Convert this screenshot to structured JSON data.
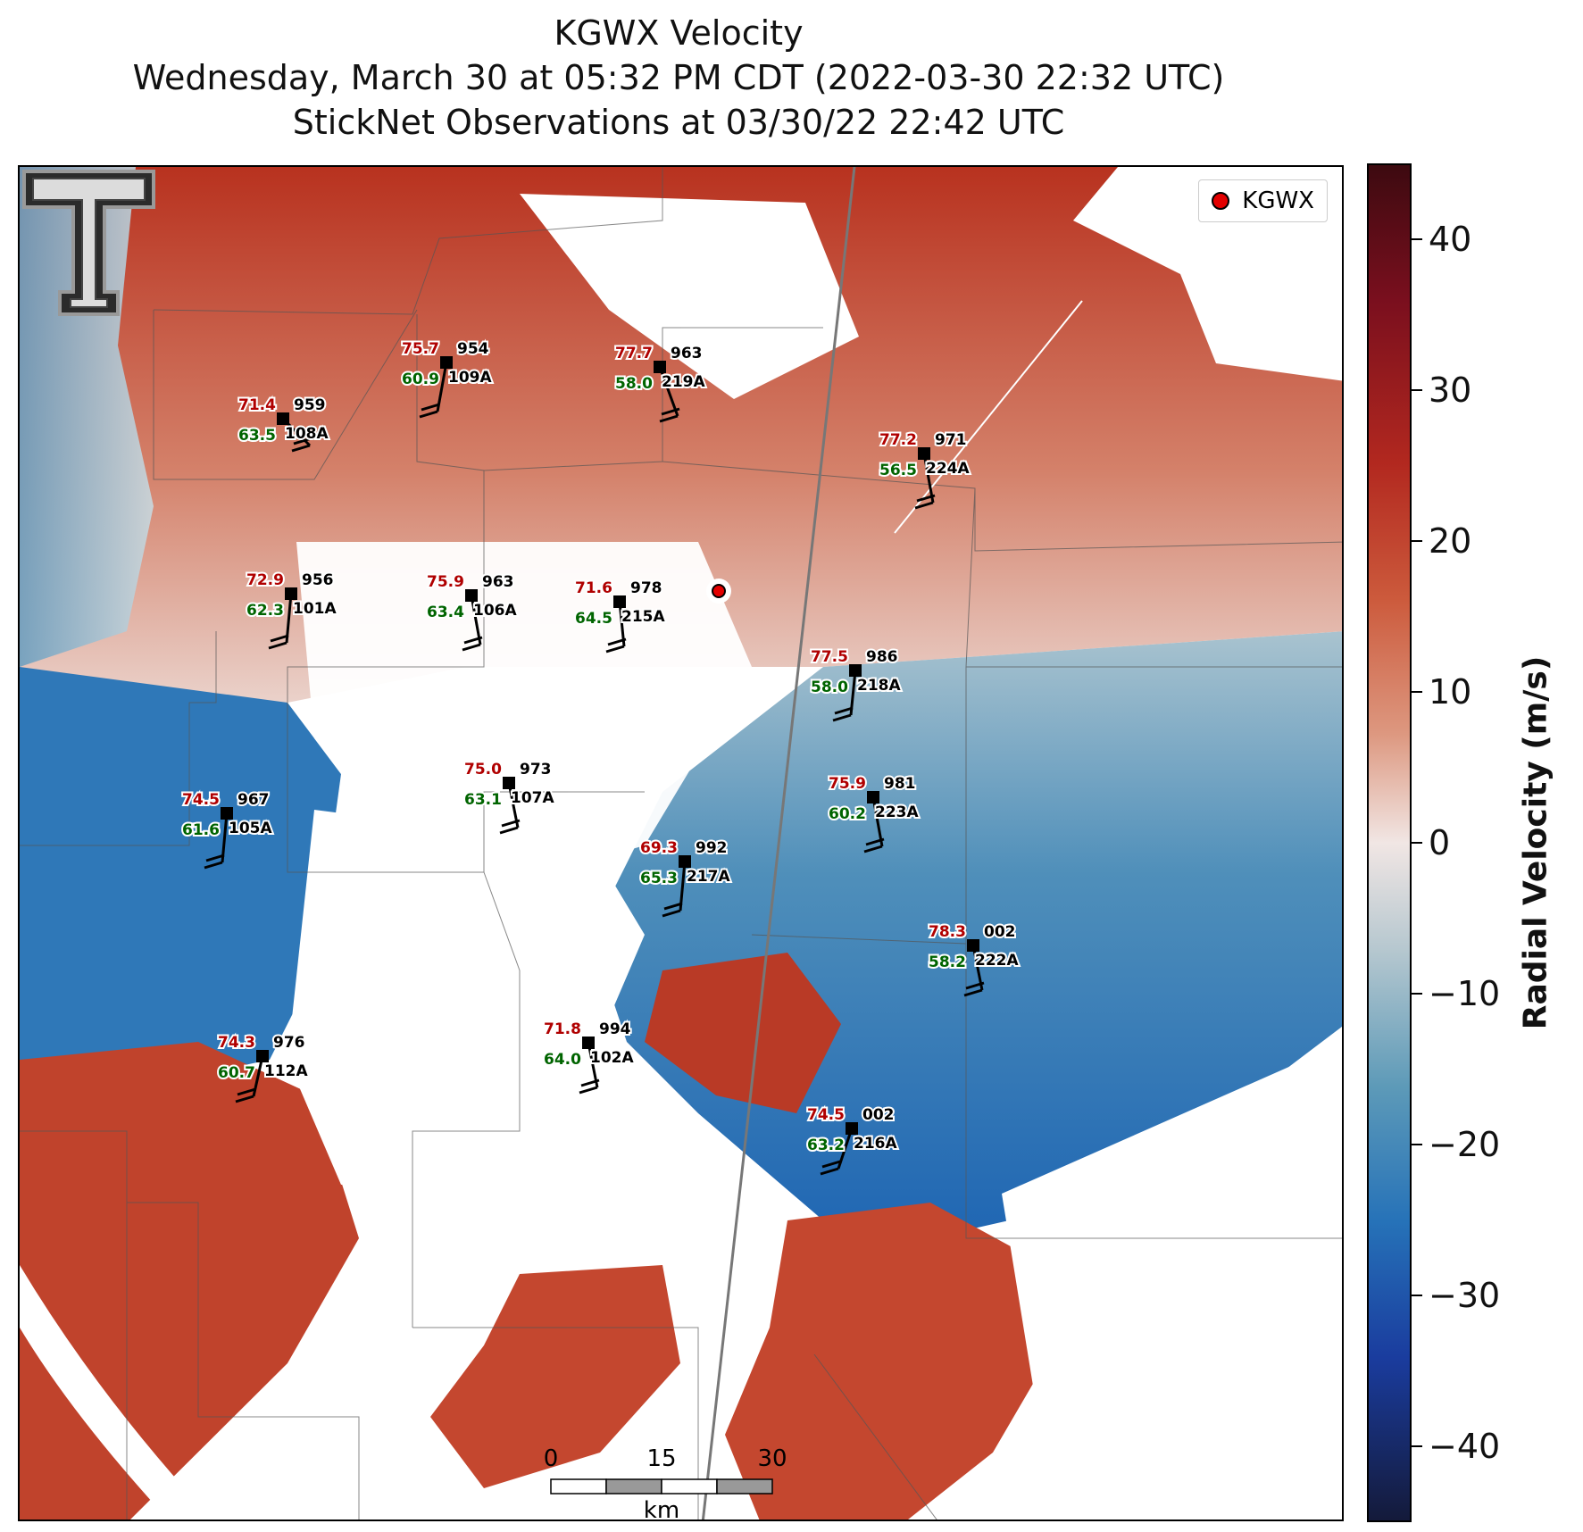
{
  "title": {
    "line1": "KGWX Velocity",
    "line2": "Wednesday, March 30 at 05:32 PM CDT (2022-03-30 22:32 UTC)",
    "line3": "StickNet Observations at 03/30/22 22:42 UTC"
  },
  "legend": {
    "label": "KGWX"
  },
  "colorbar": {
    "label": "Radial Velocity (m/s)",
    "range": [
      -45,
      45
    ],
    "ticks": [
      "40",
      "30",
      "20",
      "10",
      "0",
      "−10",
      "−20",
      "−30",
      "−40"
    ],
    "colors": {
      "positive": "#b2281f",
      "zero": "#f1e6e4",
      "negative": "#2672b8"
    }
  },
  "scalebar": {
    "labels": [
      "0",
      "15",
      "30"
    ],
    "unit": "km"
  },
  "stations": [
    {
      "id": "108A",
      "temp": "71.4",
      "dew": "63.5",
      "pres": "959"
    },
    {
      "id": "109A",
      "temp": "75.7",
      "dew": "60.9",
      "pres": "954"
    },
    {
      "id": "219A",
      "temp": "77.7",
      "dew": "58.0",
      "pres": "963"
    },
    {
      "id": "224A",
      "temp": "77.2",
      "dew": "56.5",
      "pres": "971"
    },
    {
      "id": "101A",
      "temp": "72.9",
      "dew": "62.3",
      "pres": "956"
    },
    {
      "id": "106A",
      "temp": "75.9",
      "dew": "63.4",
      "pres": "963"
    },
    {
      "id": "215A",
      "temp": "71.6",
      "dew": "64.5",
      "pres": "978"
    },
    {
      "id": "218A",
      "temp": "77.5",
      "dew": "58.0",
      "pres": "986"
    },
    {
      "id": "105A",
      "temp": "74.5",
      "dew": "61.6",
      "pres": "967"
    },
    {
      "id": "107A",
      "temp": "75.0",
      "dew": "63.1",
      "pres": "973"
    },
    {
      "id": "223A",
      "temp": "75.9",
      "dew": "60.2",
      "pres": "981"
    },
    {
      "id": "217A",
      "temp": "69.3",
      "dew": "65.3",
      "pres": "992"
    },
    {
      "id": "222A",
      "temp": "78.3",
      "dew": "58.2",
      "pres": "002"
    },
    {
      "id": "112A",
      "temp": "74.3",
      "dew": "60.7",
      "pres": "976"
    },
    {
      "id": "102A",
      "temp": "71.8",
      "dew": "64.0",
      "pres": "994"
    },
    {
      "id": "216A",
      "temp": "74.5",
      "dew": "63.2",
      "pres": "002"
    }
  ]
}
